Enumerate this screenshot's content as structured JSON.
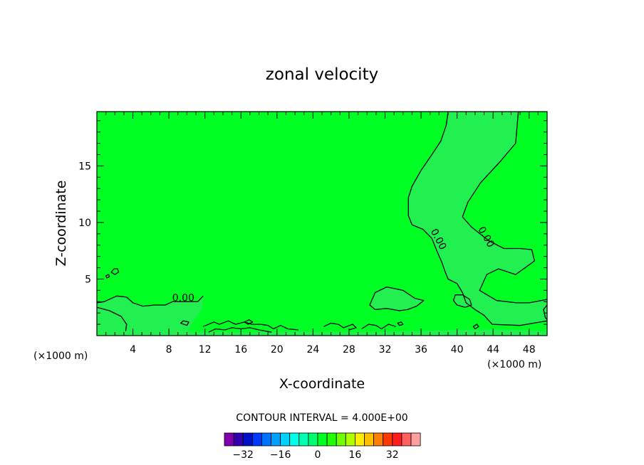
{
  "chart_data": {
    "type": "contour",
    "title": "zonal velocity",
    "xlabel": "X-coordinate",
    "ylabel": "Z-coordinate",
    "x_unit_left": "(×1000 m)",
    "x_unit_right": "(×1000 m)",
    "xlim": [
      0,
      50
    ],
    "ylim": [
      0,
      19.8
    ],
    "xticks": [
      4,
      8,
      12,
      16,
      20,
      24,
      28,
      32,
      36,
      40,
      44,
      48
    ],
    "xtick_labels": [
      "4",
      "8",
      "12",
      "16",
      "20",
      "24",
      "28",
      "32",
      "36",
      "40",
      "44",
      "48"
    ],
    "yticks": [
      5,
      10,
      15
    ],
    "ytick_labels": [
      "5",
      "10",
      "15"
    ],
    "background_color": "#00ff22",
    "contour_interval_text": "CONTOUR INTERVAL = 4.000E+00",
    "contour_labels": [
      {
        "text": "0.00",
        "x": 9.6,
        "z": 3.3,
        "angle": 0
      },
      {
        "text": "0.00",
        "x": 37.9,
        "z": 8.5,
        "angle": 62
      },
      {
        "text": "0.00",
        "x": 43.2,
        "z": 8.7,
        "angle": 60
      }
    ],
    "regions": [
      {
        "name": "weak-positive-band",
        "color": "#22f050",
        "points": [
          [
            39.0,
            19.8
          ],
          [
            46.8,
            19.8
          ],
          [
            46.5,
            17.0
          ],
          [
            44.8,
            15.4
          ],
          [
            42.6,
            13.5
          ],
          [
            41.2,
            11.8
          ],
          [
            40.6,
            10.5
          ],
          [
            41.6,
            9.6
          ],
          [
            43.5,
            8.4
          ],
          [
            45.2,
            7.7
          ],
          [
            47.0,
            7.7
          ],
          [
            48.3,
            7.6
          ],
          [
            48.6,
            6.6
          ],
          [
            46.5,
            5.4
          ],
          [
            44.6,
            5.9
          ],
          [
            43.3,
            5.4
          ],
          [
            42.5,
            4.0
          ],
          [
            44.4,
            3.1
          ],
          [
            46.6,
            2.9
          ],
          [
            48.0,
            2.9
          ],
          [
            50.0,
            3.2
          ],
          [
            50.0,
            1.3
          ],
          [
            47.0,
            0.9
          ],
          [
            43.9,
            1.0
          ],
          [
            43.0,
            1.8
          ],
          [
            42.0,
            2.3
          ],
          [
            41.0,
            2.9
          ],
          [
            40.6,
            3.8
          ],
          [
            40.0,
            4.6
          ],
          [
            39.0,
            5.0
          ],
          [
            38.6,
            5.8
          ],
          [
            38.3,
            6.5
          ],
          [
            37.8,
            7.4
          ],
          [
            37.2,
            8.6
          ],
          [
            36.2,
            9.4
          ],
          [
            35.0,
            9.8
          ],
          [
            34.6,
            10.6
          ],
          [
            34.6,
            12.2
          ],
          [
            35.0,
            13.2
          ],
          [
            36.0,
            14.6
          ],
          [
            37.2,
            16.0
          ],
          [
            38.2,
            17.2
          ],
          [
            38.8,
            18.6
          ]
        ]
      },
      {
        "name": "left-lower-patch",
        "color": "#22f050",
        "points": [
          [
            0,
            2.9
          ],
          [
            0.8,
            3.0
          ],
          [
            2.2,
            3.5
          ],
          [
            3.3,
            3.4
          ],
          [
            4.0,
            2.9
          ],
          [
            5.1,
            2.6
          ],
          [
            6.4,
            2.7
          ],
          [
            7.6,
            2.7
          ],
          [
            8.4,
            3.0
          ],
          [
            9.8,
            3.0
          ],
          [
            11.2,
            3.0
          ],
          [
            11.8,
            3.5
          ],
          [
            11.7,
            2.4
          ],
          [
            11.0,
            1.6
          ],
          [
            10.5,
            1.0
          ],
          [
            10.0,
            0.2
          ],
          [
            0,
            0.2
          ]
        ]
      },
      {
        "name": "mid-lower-blob",
        "color": "#22f050",
        "points": [
          [
            30.3,
            2.7
          ],
          [
            30.9,
            3.8
          ],
          [
            32.2,
            4.3
          ],
          [
            34.0,
            4.0
          ],
          [
            35.3,
            3.3
          ],
          [
            36.3,
            3.1
          ],
          [
            35.5,
            2.6
          ],
          [
            34.5,
            2.3
          ],
          [
            33.6,
            2.2
          ],
          [
            32.2,
            2.4
          ],
          [
            30.9,
            2.3
          ]
        ]
      },
      {
        "name": "small-blob-40",
        "color": "#22f050",
        "points": [
          [
            39.8,
            3.6
          ],
          [
            40.6,
            3.6
          ],
          [
            41.4,
            3.2
          ],
          [
            41.6,
            2.7
          ],
          [
            40.9,
            2.5
          ],
          [
            40.0,
            2.7
          ],
          [
            39.6,
            3.1
          ]
        ]
      },
      {
        "name": "bottom-band",
        "color": "#22f050",
        "points": [
          [
            0,
            0.05
          ],
          [
            50,
            0.05
          ],
          [
            50,
            0.35
          ],
          [
            45,
            0.55
          ],
          [
            40,
            0.5
          ],
          [
            34,
            0.35
          ],
          [
            28,
            0.3
          ],
          [
            22,
            0.35
          ],
          [
            16,
            0.3
          ],
          [
            10,
            0.35
          ],
          [
            4,
            0.45
          ],
          [
            0,
            0.5
          ]
        ]
      }
    ],
    "contours": [
      {
        "name": "main-zero-contour-upper",
        "points": [
          [
            39.0,
            19.8
          ],
          [
            38.8,
            18.6
          ],
          [
            38.2,
            17.2
          ],
          [
            37.2,
            16.0
          ],
          [
            36.0,
            14.6
          ],
          [
            35.0,
            13.2
          ],
          [
            34.6,
            12.2
          ],
          [
            34.6,
            10.6
          ],
          [
            35.0,
            9.8
          ],
          [
            36.2,
            9.4
          ],
          [
            37.2,
            8.6
          ],
          [
            37.8,
            7.4
          ],
          [
            38.3,
            6.5
          ],
          [
            38.6,
            5.8
          ],
          [
            39.0,
            5.0
          ],
          [
            40.0,
            4.6
          ],
          [
            40.6,
            3.8
          ],
          [
            41.0,
            2.9
          ],
          [
            42.0,
            2.3
          ],
          [
            43.0,
            1.8
          ],
          [
            43.9,
            1.0
          ],
          [
            47.0,
            0.9
          ],
          [
            50.0,
            1.3
          ]
        ]
      },
      {
        "name": "main-zero-contour-right",
        "points": [
          [
            46.8,
            19.8
          ],
          [
            46.5,
            17.0
          ],
          [
            44.8,
            15.4
          ],
          [
            42.6,
            13.5
          ],
          [
            41.2,
            11.8
          ],
          [
            40.6,
            10.5
          ],
          [
            41.6,
            9.6
          ],
          [
            43.5,
            8.4
          ],
          [
            45.2,
            7.7
          ],
          [
            47.0,
            7.7
          ],
          [
            48.3,
            7.6
          ],
          [
            48.6,
            6.6
          ],
          [
            46.5,
            5.4
          ],
          [
            44.6,
            5.9
          ],
          [
            43.3,
            5.4
          ],
          [
            42.5,
            4.0
          ],
          [
            44.4,
            3.1
          ],
          [
            46.6,
            2.9
          ],
          [
            48.0,
            2.9
          ],
          [
            50.0,
            3.2
          ]
        ]
      },
      {
        "name": "left-zero-contour",
        "points": [
          [
            0,
            2.9
          ],
          [
            0.8,
            3.0
          ],
          [
            2.2,
            3.5
          ],
          [
            3.3,
            3.4
          ],
          [
            4.0,
            2.9
          ],
          [
            5.1,
            2.6
          ],
          [
            6.4,
            2.7
          ],
          [
            7.6,
            2.7
          ],
          [
            8.4,
            3.0
          ],
          [
            9.8,
            3.0
          ],
          [
            11.2,
            3.0
          ],
          [
            11.8,
            3.5
          ]
        ]
      },
      {
        "name": "left-lower-contour",
        "points": [
          [
            0,
            2.5
          ],
          [
            1.4,
            2.2
          ],
          [
            2.7,
            1.7
          ],
          [
            3.3,
            1.0
          ],
          [
            3.2,
            0.4
          ]
        ]
      },
      {
        "name": "mid-blob-contour",
        "closed": true,
        "points": [
          [
            30.3,
            2.7
          ],
          [
            30.9,
            3.8
          ],
          [
            32.2,
            4.3
          ],
          [
            34.0,
            4.0
          ],
          [
            35.3,
            3.3
          ],
          [
            36.3,
            3.1
          ],
          [
            35.5,
            2.6
          ],
          [
            34.5,
            2.3
          ],
          [
            33.6,
            2.2
          ],
          [
            32.2,
            2.4
          ],
          [
            30.9,
            2.3
          ]
        ]
      },
      {
        "name": "blob-40-contour",
        "closed": true,
        "points": [
          [
            39.8,
            3.6
          ],
          [
            40.6,
            3.6
          ],
          [
            41.4,
            3.2
          ],
          [
            41.6,
            2.7
          ],
          [
            40.9,
            2.5
          ],
          [
            40.0,
            2.7
          ],
          [
            39.6,
            3.1
          ]
        ]
      },
      {
        "name": "small-left-oval",
        "closed": true,
        "points": [
          [
            1.6,
            5.6
          ],
          [
            1.9,
            5.9
          ],
          [
            2.3,
            5.9
          ],
          [
            2.4,
            5.6
          ],
          [
            2.0,
            5.4
          ]
        ]
      },
      {
        "name": "tiny-left-oval",
        "closed": true,
        "points": [
          [
            1.0,
            5.3
          ],
          [
            1.3,
            5.4
          ],
          [
            1.4,
            5.2
          ],
          [
            1.1,
            5.1
          ]
        ]
      },
      {
        "name": "bottom-wiggle-1",
        "points": [
          [
            11.8,
            0.8
          ],
          [
            13.0,
            1.2
          ],
          [
            13.6,
            1.0
          ],
          [
            14.6,
            1.3
          ],
          [
            15.4,
            1.0
          ],
          [
            16.4,
            1.2
          ],
          [
            17.2,
            1.0
          ],
          [
            18.2,
            1.0
          ],
          [
            19.0,
            0.9
          ],
          [
            19.6,
            0.6
          ],
          [
            20.4,
            0.9
          ],
          [
            21.2,
            0.6
          ],
          [
            22.4,
            0.5
          ]
        ]
      },
      {
        "name": "bottom-wiggle-2",
        "points": [
          [
            12.4,
            0.3
          ],
          [
            13.2,
            0.6
          ],
          [
            14.2,
            0.5
          ],
          [
            15.0,
            0.7
          ],
          [
            16.0,
            0.6
          ],
          [
            17.0,
            0.7
          ],
          [
            18.0,
            0.5
          ],
          [
            19.4,
            0.3
          ]
        ]
      },
      {
        "name": "bottom-wiggle-3",
        "points": [
          [
            25.2,
            0.8
          ],
          [
            26.0,
            1.1
          ],
          [
            26.8,
            1.0
          ],
          [
            27.4,
            0.7
          ],
          [
            28.4,
            1.0
          ],
          [
            28.8,
            0.7
          ],
          [
            28.0,
            0.5
          ]
        ]
      },
      {
        "name": "bottom-wiggle-4",
        "points": [
          [
            29.4,
            0.6
          ],
          [
            30.2,
            1.0
          ],
          [
            31.0,
            0.9
          ],
          [
            31.6,
            0.6
          ],
          [
            32.4,
            1.0
          ],
          [
            33.2,
            0.8
          ]
        ]
      },
      {
        "name": "bottom-oval-1",
        "closed": true,
        "points": [
          [
            9.3,
            1.1
          ],
          [
            9.6,
            1.3
          ],
          [
            10.2,
            1.2
          ],
          [
            10.0,
            0.9
          ]
        ]
      },
      {
        "name": "bottom-oval-2",
        "closed": true,
        "points": [
          [
            16.4,
            1.2
          ],
          [
            16.9,
            1.4
          ],
          [
            17.3,
            1.2
          ],
          [
            16.8,
            1.0
          ]
        ]
      },
      {
        "name": "bottom-oval-3",
        "closed": true,
        "points": [
          [
            41.8,
            0.8
          ],
          [
            42.2,
            1.0
          ],
          [
            42.4,
            0.8
          ],
          [
            42.0,
            0.6
          ]
        ]
      },
      {
        "name": "bottom-oval-4",
        "closed": true,
        "points": [
          [
            33.4,
            1.1
          ],
          [
            33.8,
            1.2
          ],
          [
            34.0,
            1.0
          ],
          [
            33.6,
            0.9
          ]
        ]
      },
      {
        "name": "right-edge-contour",
        "points": [
          [
            50.0,
            2.7
          ],
          [
            49.6,
            2.3
          ],
          [
            49.8,
            1.6
          ],
          [
            50.0,
            1.4
          ]
        ]
      }
    ],
    "colorbar": {
      "colors": [
        "#8000b0",
        "#3300b0",
        "#0010c8",
        "#0038ff",
        "#0070ff",
        "#00a0ff",
        "#00d0ff",
        "#00ffe8",
        "#00ffb0",
        "#00ff70",
        "#00ff22",
        "#22ff00",
        "#70ff00",
        "#b0ff00",
        "#ffee00",
        "#ffc000",
        "#ff8000",
        "#ff3a00",
        "#ff1c1c",
        "#ff6060",
        "#ffa0a0"
      ],
      "ticks": [
        {
          "label": "−32",
          "index": 2
        },
        {
          "label": "−16",
          "index": 6
        },
        {
          "label": "0",
          "index": 10
        },
        {
          "label": "16",
          "index": 14
        },
        {
          "label": "32",
          "index": 18
        }
      ]
    }
  }
}
